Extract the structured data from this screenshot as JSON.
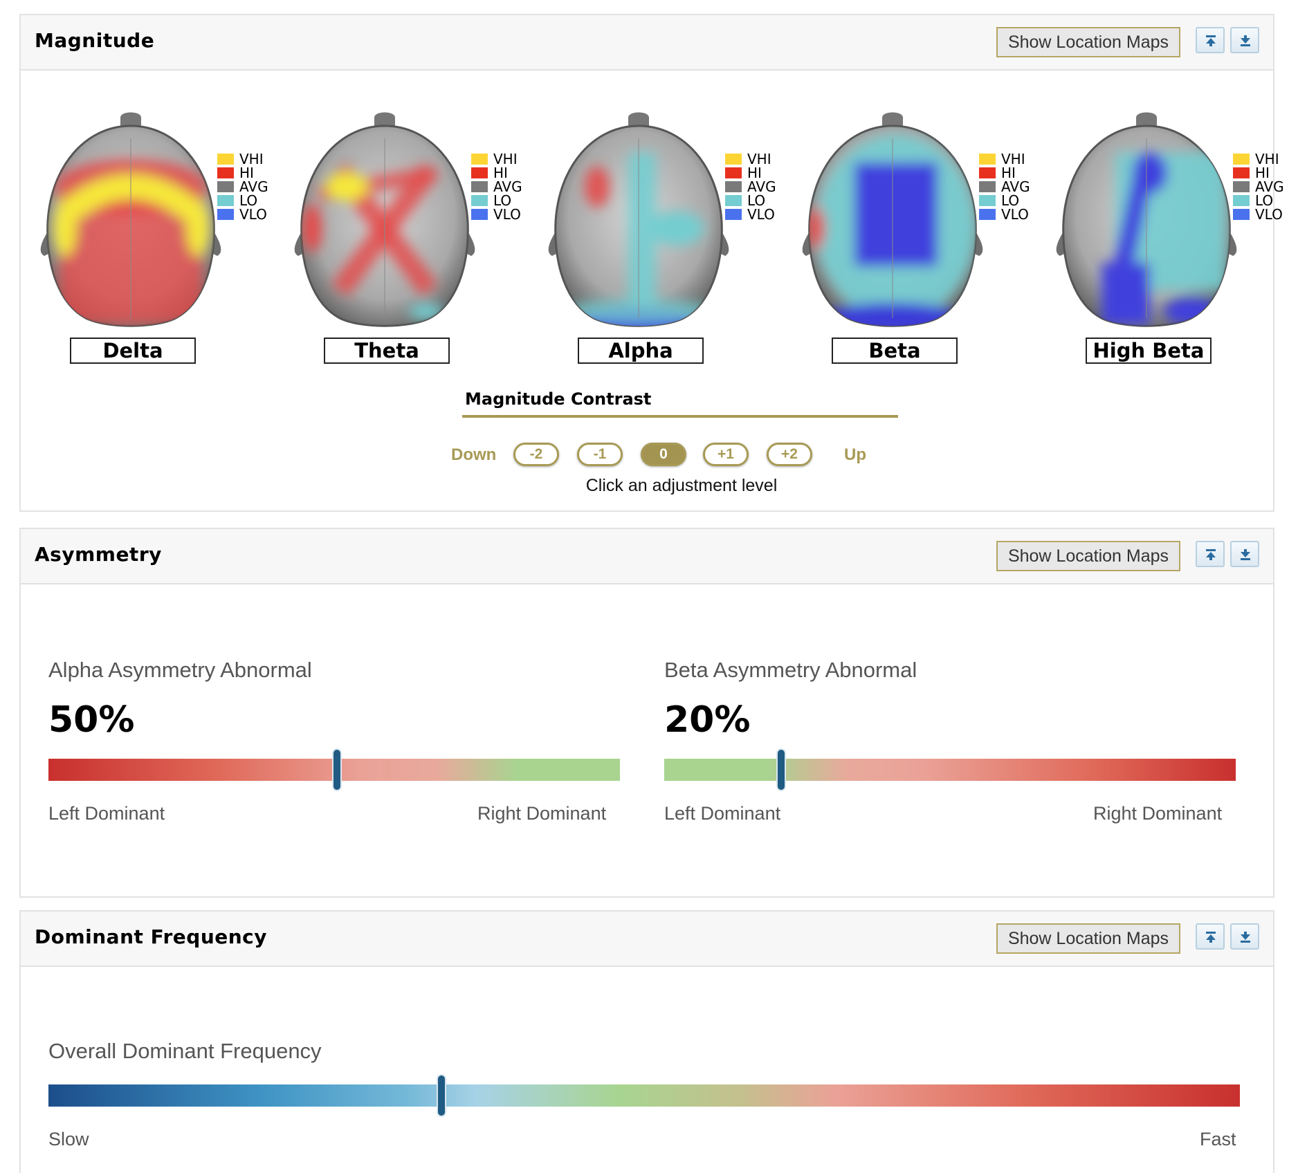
{
  "magnitude": {
    "title": "Magnitude",
    "show_maps_label": "Show Location Maps",
    "legend": [
      "VHI",
      "HI",
      "AVG",
      "LO",
      "VLO"
    ],
    "legend_colors": [
      "#fcd535",
      "#e8301f",
      "#7a7a7a",
      "#74cdd0",
      "#4a72ee"
    ],
    "bands": [
      {
        "label": "Delta"
      },
      {
        "label": "Theta"
      },
      {
        "label": "Alpha"
      },
      {
        "label": "Beta"
      },
      {
        "label": "High Beta"
      }
    ],
    "contrast": {
      "title": "Magnitude Contrast",
      "down_label": "Down",
      "up_label": "Up",
      "levels": [
        "-2",
        "-1",
        "0",
        "+1",
        "+2"
      ],
      "selected": "0",
      "hint": "Click an adjustment level"
    }
  },
  "asymmetry": {
    "title": "Asymmetry",
    "show_maps_label": "Show Location Maps",
    "alpha": {
      "title": "Alpha Asymmetry Abnormal",
      "value_text": "50%",
      "marker_position": 0.505,
      "left_label": "Left Dominant",
      "right_label": "Right Dominant"
    },
    "beta": {
      "title": "Beta Asymmetry Abnormal",
      "value_text": "20%",
      "marker_position": 0.205,
      "left_label": "Left Dominant",
      "right_label": "Right Dominant"
    }
  },
  "dominant_frequency": {
    "title": "Dominant Frequency",
    "show_maps_label": "Show Location Maps",
    "overall": {
      "title": "Overall Dominant Frequency",
      "marker_position": 0.33,
      "left_label": "Slow",
      "right_label": "Fast"
    }
  }
}
